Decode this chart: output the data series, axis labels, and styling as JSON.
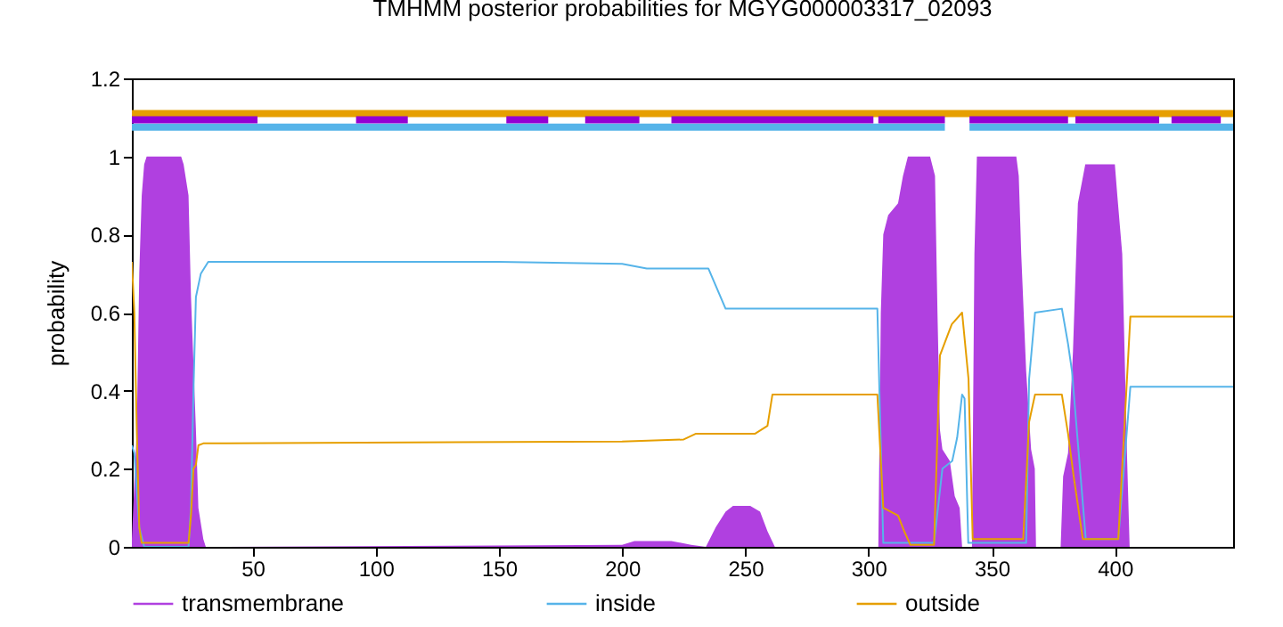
{
  "chart_data": {
    "type": "line",
    "title": "TMHMM posterior probabilities for MGYG000003317_02093",
    "ylabel": "probability",
    "xlim": [
      1,
      448
    ],
    "xticks": [
      50,
      100,
      150,
      200,
      250,
      300,
      350,
      400
    ],
    "ylim": [
      0,
      1.2
    ],
    "yticks": [
      0,
      0.2,
      0.4,
      0.6,
      0.8,
      1,
      1.2
    ],
    "grid": false,
    "legend": "bottom",
    "series": [
      {
        "name": "transmembrane",
        "type": "area",
        "color": "#b040e0",
        "x": [
          1,
          3,
          4,
          5,
          6,
          7,
          21,
          22,
          24,
          25,
          27,
          28,
          30,
          31,
          200,
          205,
          220,
          228,
          234,
          238,
          242,
          245,
          252,
          256,
          259,
          262,
          304,
          305,
          306,
          308,
          312,
          314,
          316,
          325,
          327,
          328,
          329,
          330,
          333,
          335,
          337,
          338,
          342,
          343,
          344,
          360,
          361,
          362,
          364,
          366,
          367.5,
          368,
          378,
          379,
          381,
          383,
          385,
          388,
          400,
          401,
          403,
          405,
          406,
          448
        ],
        "values": [
          0.02,
          0.3,
          0.7,
          0.9,
          0.98,
          1,
          1,
          0.98,
          0.9,
          0.64,
          0.3,
          0.1,
          0.02,
          0,
          0.005,
          0.015,
          0.015,
          0.005,
          0,
          0.05,
          0.09,
          0.105,
          0.105,
          0.09,
          0.04,
          0,
          0,
          0.6,
          0.8,
          0.85,
          0.88,
          0.95,
          1,
          1,
          0.95,
          0.6,
          0.3,
          0.25,
          0.22,
          0.13,
          0.1,
          0,
          0,
          0.75,
          1,
          1,
          0.95,
          0.75,
          0.45,
          0.25,
          0.2,
          0,
          0,
          0.18,
          0.24,
          0.5,
          0.88,
          0.98,
          0.98,
          0.9,
          0.75,
          0.22,
          0,
          0
        ]
      },
      {
        "name": "inside",
        "color": "#56b4e9",
        "x": [
          1,
          2,
          4,
          6,
          24,
          25,
          26,
          27,
          29,
          32,
          150,
          200,
          210,
          235,
          242,
          303.6,
          306,
          326.6,
          330,
          334,
          336,
          338,
          339,
          340.5,
          364,
          365.2,
          367.6,
          378.5,
          381,
          382.6,
          388.2,
          401.4,
          406.3,
          448
        ],
        "values": [
          0.26,
          0.24,
          0.05,
          0,
          0,
          0.1,
          0.4,
          0.64,
          0.7,
          0.73,
          0.73,
          0.725,
          0.713,
          0.713,
          0.61,
          0.61,
          0.01,
          0.01,
          0.2,
          0.22,
          0.28,
          0.39,
          0.38,
          0.01,
          0.01,
          0.43,
          0.6,
          0.61,
          0.52,
          0.45,
          0.02,
          0.02,
          0.41,
          0.41
        ]
      },
      {
        "name": "outside",
        "color": "#e69f00",
        "x": [
          1,
          2,
          3,
          4,
          5,
          24,
          25,
          26,
          27,
          28,
          30,
          200,
          225,
          230,
          254,
          259,
          261,
          303.6,
          306,
          312,
          314.5,
          317,
          326.6,
          329,
          333.8,
          338,
          340.6,
          342.3,
          362.8,
          365.2,
          367.6,
          378.5,
          381,
          383.3,
          387,
          401.4,
          406.3,
          448
        ],
        "values": [
          0.73,
          0.6,
          0.3,
          0.05,
          0.01,
          0.01,
          0.08,
          0.2,
          0.21,
          0.26,
          0.265,
          0.27,
          0.275,
          0.29,
          0.29,
          0.31,
          0.39,
          0.39,
          0.1,
          0.08,
          0.04,
          0.005,
          0.005,
          0.49,
          0.57,
          0.6,
          0.43,
          0.02,
          0.02,
          0.32,
          0.39,
          0.39,
          0.29,
          0.18,
          0.02,
          0.02,
          0.59,
          0.59
        ]
      },
      {
        "color": "#e69f00",
        "x": [
          1,
          448
        ],
        "values": [
          1.11,
          1.11
        ]
      },
      {
        "color": "#56b4e9",
        "x": [
          1,
          331,
          336,
          341,
          448
        ],
        "values": [
          1.075,
          1.075,
          null,
          1.075,
          1.075
        ]
      },
      {
        "color": "#9400d3",
        "x": [
          1,
          52,
          72,
          92,
          113,
          133,
          153,
          170,
          178,
          185,
          207,
          214,
          220,
          302,
          303,
          304,
          331,
          336,
          341,
          381,
          382,
          384,
          418,
          420,
          423,
          443
        ],
        "values": [
          1.094,
          1.094,
          null,
          1.094,
          1.094,
          null,
          1.094,
          1.094,
          null,
          1.094,
          1.094,
          null,
          1.094,
          1.094,
          null,
          1.094,
          1.094,
          null,
          1.094,
          1.094,
          null,
          1.094,
          1.094,
          null,
          1.094,
          1.094
        ]
      }
    ]
  }
}
